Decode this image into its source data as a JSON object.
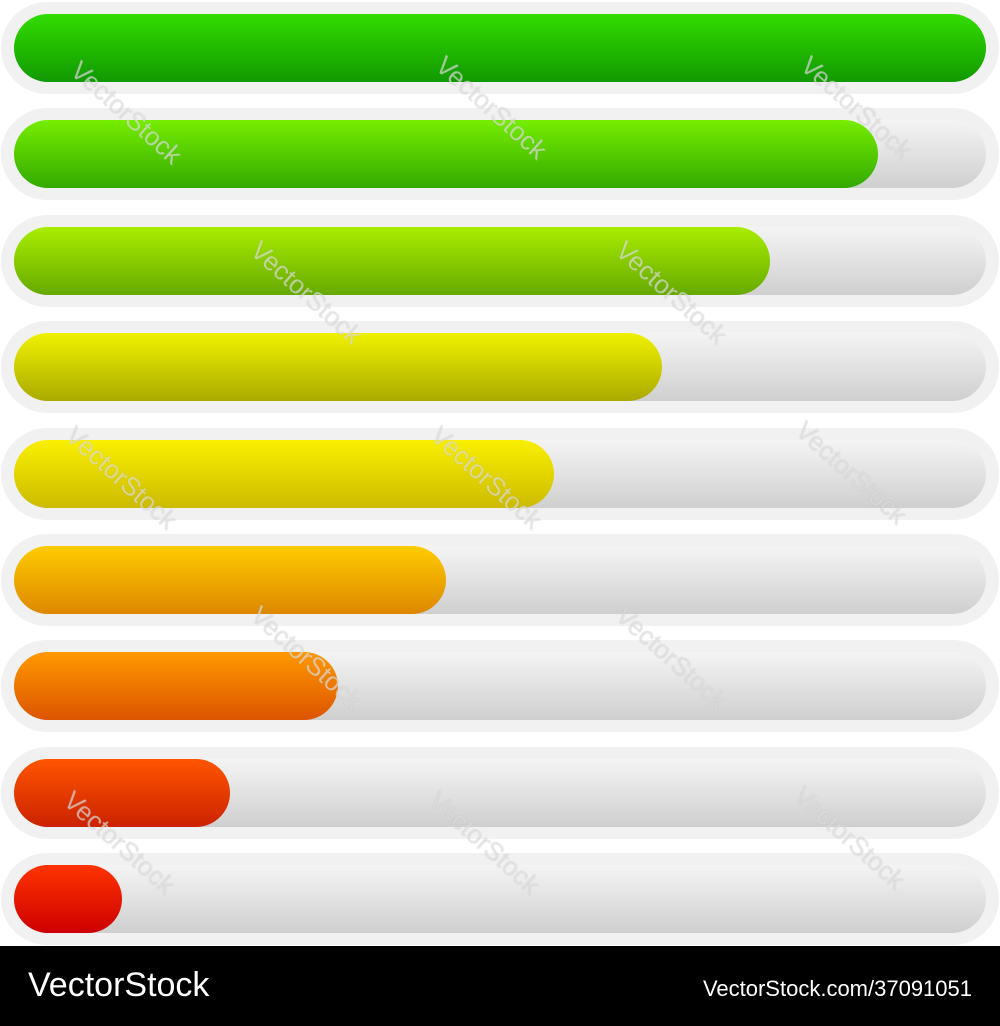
{
  "bars": [
    {
      "progress": 1.0,
      "color_top": "#33dd00",
      "color_bottom": "#119900"
    },
    {
      "progress": 0.889,
      "color_top": "#77ee00",
      "color_bottom": "#33aa00"
    },
    {
      "progress": 0.778,
      "color_top": "#aaee00",
      "color_bottom": "#66aa00"
    },
    {
      "progress": 0.667,
      "color_top": "#f0f200",
      "color_bottom": "#aaaa00"
    },
    {
      "progress": 0.556,
      "color_top": "#faf000",
      "color_bottom": "#ccbb00"
    },
    {
      "progress": 0.444,
      "color_top": "#ffcc00",
      "color_bottom": "#dd8800"
    },
    {
      "progress": 0.333,
      "color_top": "#ff9900",
      "color_bottom": "#dd5500"
    },
    {
      "progress": 0.222,
      "color_top": "#ff5500",
      "color_bottom": "#cc2200"
    },
    {
      "progress": 0.111,
      "color_top": "#ff3300",
      "color_bottom": "#cc0000"
    }
  ],
  "watermark": "VectorStock",
  "footer": {
    "brand": "VectorStock",
    "ref": "VectorStock.com/37091051"
  }
}
